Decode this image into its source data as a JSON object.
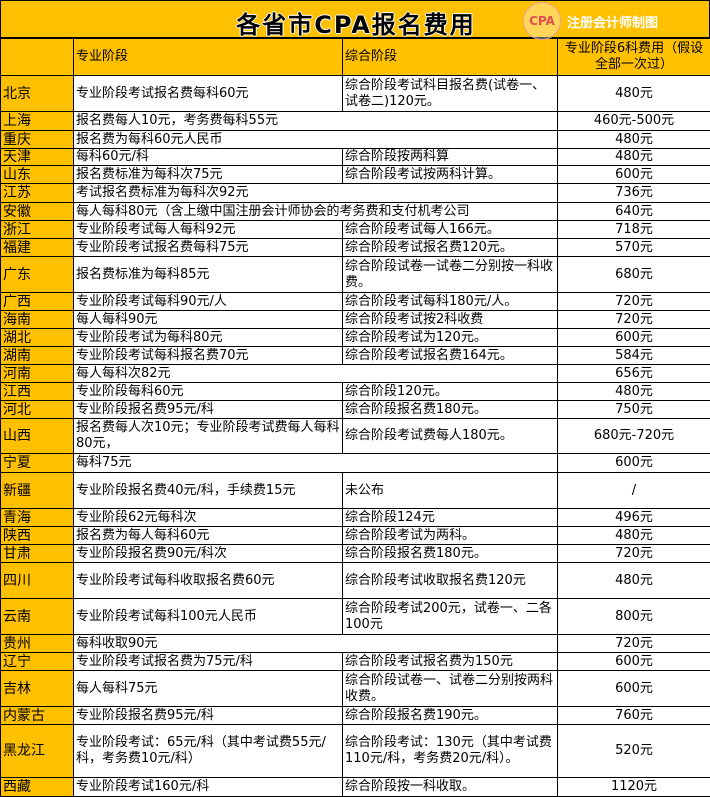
{
  "title": "各省市CPA报名费用",
  "stamp": "CPA",
  "source": "注册会计师制图",
  "headers": {
    "province": "",
    "professional": "专业阶段",
    "comprehensive": "综合阶段",
    "fee": "专业阶段6科费用（假设全部一次过）"
  },
  "rows": [
    {
      "province": "北京",
      "professional": "专业阶段考试报名费每科60元",
      "comprehensive": "综合阶段考试科目报名费(试卷一、试卷二)120元。",
      "fee": "480元"
    },
    {
      "province": "上海",
      "professional": "报名费每人10元，考务费每科55元",
      "comprehensive": "",
      "fee": "460元-500元"
    },
    {
      "province": "重庆",
      "professional": "报名费为每科60元人民币",
      "comprehensive": "",
      "fee": "480元"
    },
    {
      "province": "天津",
      "professional": "每科60元/科",
      "comprehensive": "综合阶段按两科算",
      "fee": "480元"
    },
    {
      "province": "山东",
      "professional": "报名费标准为每科次75元",
      "comprehensive": "综合阶段考试按两科计算。",
      "fee": "600元"
    },
    {
      "province": "江苏",
      "professional": "考试报名费标准为每科次92元",
      "comprehensive": "",
      "fee": "736元"
    },
    {
      "province": "安徽",
      "professional": "每人每科80元（含上缴中国注册会计师协会的考务费和支付机考公司",
      "comprehensive": "",
      "fee": "640元"
    },
    {
      "province": "浙江",
      "professional": "专业阶段考试每人每科92元",
      "comprehensive": "综合阶段考试每人166元。",
      "fee": "718元"
    },
    {
      "province": "福建",
      "professional": "专业阶段考试报名费每科75元",
      "comprehensive": "综合阶段考试报名费120元。",
      "fee": "570元"
    },
    {
      "province": "广东",
      "professional": "报名费标准为每科85元",
      "comprehensive": "综合阶段试卷一试卷二分别按一科收费。",
      "fee": "680元"
    },
    {
      "province": "广西",
      "professional": "专业阶段考试每科90元/人",
      "comprehensive": "综合阶段考试每科180元/人。",
      "fee": "720元"
    },
    {
      "province": "海南",
      "professional": "每人每科90元",
      "comprehensive": "综合阶段考试按2科收费",
      "fee": "720元"
    },
    {
      "province": "湖北",
      "professional": "专业阶段考试为每科80元",
      "comprehensive": "综合阶段考试为120元。",
      "fee": "600元"
    },
    {
      "province": "湖南",
      "professional": "专业阶段考试每科报名费70元",
      "comprehensive": "综合阶段考试报名费164元。",
      "fee": "584元"
    },
    {
      "province": "河南",
      "professional": "每人每科次82元",
      "comprehensive": "",
      "fee": "656元"
    },
    {
      "province": "江西",
      "professional": "专业阶段每科60元",
      "comprehensive": "综合阶段120元。",
      "fee": "480元"
    },
    {
      "province": "河北",
      "professional": "专业阶段报名费95元/科",
      "comprehensive": "综合阶段报名费180元。",
      "fee": "750元"
    },
    {
      "province": "山西",
      "professional": "报名费每人次10元；专业阶段考试费每人每科80元，",
      "comprehensive": "综合阶段考试费每人180元。",
      "fee": "680元-720元"
    },
    {
      "province": "宁夏",
      "professional": "每科75元",
      "comprehensive": "",
      "fee": "600元"
    },
    {
      "province": "新疆",
      "professional": "专业阶段报名费40元/科，手续费15元",
      "comprehensive": "未公布",
      "fee": "/"
    },
    {
      "province": "青海",
      "professional": "专业阶段62元每科次",
      "comprehensive": "综合阶段124元",
      "fee": "496元"
    },
    {
      "province": "陕西",
      "professional": "报名费为每人每科60元",
      "comprehensive": "综合阶段考试为两科。",
      "fee": "480元"
    },
    {
      "province": "甘肃",
      "professional": "专业阶段报名费90元/科次",
      "comprehensive": "综合阶段报名费180元。",
      "fee": "720元"
    },
    {
      "province": "四川",
      "professional": "专业阶段考试每科收取报名费60元",
      "comprehensive": "综合阶段考试收取报名费120元",
      "fee": "480元"
    },
    {
      "province": "云南",
      "professional": "专业阶段考试每科100元人民币",
      "comprehensive": "综合阶段考试200元，试卷一、二各100元",
      "fee": "800元"
    },
    {
      "province": "贵州",
      "professional": "每科收取90元",
      "comprehensive": "",
      "fee": "720元"
    },
    {
      "province": "辽宁",
      "professional": "专业阶段考试报名费为75元/科",
      "comprehensive": "综合阶段考试报名费为150元",
      "fee": "600元"
    },
    {
      "province": "吉林",
      "professional": "每人每科75元",
      "comprehensive": "综合阶段试卷一、试卷二分别按两科收费。",
      "fee": "600元"
    },
    {
      "province": "内蒙古",
      "professional": "专业阶段报名费95元/科",
      "comprehensive": "综合阶段报名费190元。",
      "fee": "760元"
    },
    {
      "province": "黑龙江",
      "professional": "专业阶段考试：65元/科（其中考试费55元/科，考务费10元/科）",
      "comprehensive": "综合阶段考试：130元（其中考试费110元/科，考务费20元/科）。",
      "fee": "520元"
    },
    {
      "province": "西藏",
      "professional": "专业阶段考试160元/科",
      "comprehensive": "综合阶段按一科收取。",
      "fee": "1120元"
    }
  ],
  "colors": {
    "accent": "#FFC000"
  }
}
